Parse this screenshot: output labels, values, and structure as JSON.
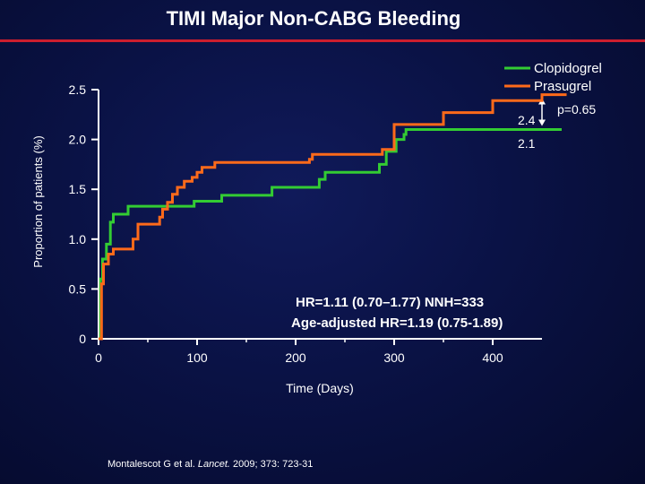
{
  "chart_data": {
    "type": "line",
    "title": "TIMI Major Non-CABG Bleeding",
    "xlabel": "Time (Days)",
    "ylabel": "Proportion of patients (%)",
    "xlim": [
      0,
      450
    ],
    "ylim": [
      0,
      2.5
    ],
    "x_ticks": [
      0,
      100,
      200,
      300,
      400
    ],
    "y_ticks": [
      0,
      0.5,
      1.0,
      1.5,
      2.0,
      2.5
    ],
    "x_tick_labels": [
      "0",
      "100",
      "200",
      "300",
      "400"
    ],
    "y_tick_labels": [
      "0",
      "0.5",
      "1.0",
      "1.5",
      "2.0",
      "2.5"
    ],
    "legend_position": "top-right",
    "grid": false,
    "series": [
      {
        "name": "Clopidogrel",
        "color": "#33cc33",
        "steps": [
          [
            0,
            0
          ],
          [
            2,
            0
          ],
          [
            2,
            0.6
          ],
          [
            4,
            0.6
          ],
          [
            4,
            0.8
          ],
          [
            8,
            0.8
          ],
          [
            8,
            0.95
          ],
          [
            12,
            0.95
          ],
          [
            12,
            1.17
          ],
          [
            15,
            1.17
          ],
          [
            15,
            1.25
          ],
          [
            30,
            1.25
          ],
          [
            30,
            1.33
          ],
          [
            97,
            1.33
          ],
          [
            97,
            1.38
          ],
          [
            125,
            1.38
          ],
          [
            125,
            1.44
          ],
          [
            176,
            1.44
          ],
          [
            176,
            1.52
          ],
          [
            224,
            1.52
          ],
          [
            224,
            1.6
          ],
          [
            230,
            1.6
          ],
          [
            230,
            1.67
          ],
          [
            285,
            1.67
          ],
          [
            285,
            1.75
          ],
          [
            292,
            1.75
          ],
          [
            292,
            1.88
          ],
          [
            302,
            1.88
          ],
          [
            302,
            2.0
          ],
          [
            310,
            2.0
          ],
          [
            310,
            2.05
          ],
          [
            312,
            2.05
          ],
          [
            312,
            2.1
          ],
          [
            470,
            2.1
          ]
        ]
      },
      {
        "name": "Prasugrel",
        "color": "#ff6a1a",
        "steps": [
          [
            0,
            0
          ],
          [
            3,
            0
          ],
          [
            3,
            0.55
          ],
          [
            5,
            0.55
          ],
          [
            5,
            0.75
          ],
          [
            10,
            0.75
          ],
          [
            10,
            0.85
          ],
          [
            15,
            0.85
          ],
          [
            15,
            0.9
          ],
          [
            35,
            0.9
          ],
          [
            35,
            1.0
          ],
          [
            40,
            1.0
          ],
          [
            40,
            1.15
          ],
          [
            62,
            1.15
          ],
          [
            62,
            1.22
          ],
          [
            65,
            1.22
          ],
          [
            65,
            1.3
          ],
          [
            70,
            1.3
          ],
          [
            70,
            1.37
          ],
          [
            75,
            1.37
          ],
          [
            75,
            1.45
          ],
          [
            80,
            1.45
          ],
          [
            80,
            1.52
          ],
          [
            87,
            1.52
          ],
          [
            87,
            1.58
          ],
          [
            95,
            1.58
          ],
          [
            95,
            1.62
          ],
          [
            100,
            1.62
          ],
          [
            100,
            1.67
          ],
          [
            105,
            1.67
          ],
          [
            105,
            1.72
          ],
          [
            118,
            1.72
          ],
          [
            118,
            1.77
          ],
          [
            214,
            1.77
          ],
          [
            214,
            1.8
          ],
          [
            217,
            1.8
          ],
          [
            217,
            1.85
          ],
          [
            288,
            1.85
          ],
          [
            288,
            1.9
          ],
          [
            300,
            1.9
          ],
          [
            300,
            2.15
          ],
          [
            350,
            2.15
          ],
          [
            350,
            2.27
          ],
          [
            400,
            2.27
          ],
          [
            400,
            2.39
          ],
          [
            450,
            2.39
          ],
          [
            450,
            2.45
          ],
          [
            475,
            2.45
          ]
        ]
      }
    ],
    "annotations": {
      "end_label_prasugrel": "2.4",
      "end_label_clopidogrel": "2.1",
      "p_value": "p=0.65",
      "hr_line": "HR=1.11 (0.70–1.77)  NNH=333",
      "age_adjusted_line": "Age-adjusted HR=1.19 (0.75-1.89)"
    }
  },
  "citation": {
    "authors": "Montalescot G et al. ",
    "journal": "Lancet.",
    "ref": " 2009; 373: 723-31"
  }
}
